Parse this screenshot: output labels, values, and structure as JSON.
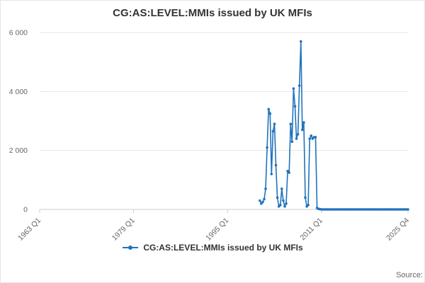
{
  "title": "CG:AS:LEVEL:MMIs issued by UK MFIs",
  "legend": {
    "label": "CG:AS:LEVEL:MMIs issued by UK MFIs"
  },
  "source": "Source:",
  "colors": {
    "series": "#2073bc",
    "gridline": "#e6e6e6",
    "axis": "#cccccc",
    "tick_text": "#666666"
  },
  "chart_data": {
    "type": "line",
    "title": "CG:AS:LEVEL:MMIs issued by UK MFIs",
    "series_name": "CG:AS:LEVEL:MMIs issued by UK MFIs",
    "xlabel": "",
    "ylabel": "",
    "x_axis": {
      "start": "1963 Q1",
      "end": "2025 Q4",
      "frequency": "quarterly",
      "total_quarters": 252,
      "tick_labels": [
        "1963 Q1",
        "1979 Q1",
        "1995 Q1",
        "2011 Q1",
        "2025 Q4"
      ],
      "tick_indices": [
        0,
        64,
        128,
        192,
        251
      ]
    },
    "y_axis": {
      "min": 0,
      "max": 6000,
      "tick_values": [
        0,
        2000,
        4000,
        6000
      ],
      "tick_labels": [
        "0",
        "2 000",
        "4 000",
        "6 000"
      ]
    },
    "legend_position": "bottom",
    "grid": true,
    "data_start_quarter": "2000 Q3",
    "data_start_index": 150,
    "values": [
      300,
      200,
      250,
      350,
      700,
      2100,
      3400,
      3250,
      1200,
      2650,
      2900,
      1500,
      400,
      100,
      150,
      700,
      300,
      100,
      200,
      1300,
      1250,
      2900,
      2300,
      4100,
      3500,
      2400,
      2550,
      4200,
      5700,
      2700,
      2950,
      400,
      100,
      150,
      2400,
      2500,
      2400,
      2450,
      2450,
      50,
      20,
      10,
      0,
      0,
      0,
      0,
      0,
      0,
      0,
      0,
      0,
      0,
      0,
      0,
      0,
      0,
      0,
      0,
      0,
      0,
      0,
      0,
      0,
      0,
      0,
      0,
      0,
      0,
      0,
      0,
      0,
      0,
      0,
      0,
      0,
      0,
      0,
      0,
      0,
      0,
      0,
      0,
      0,
      0,
      0,
      0,
      0,
      0,
      0,
      0,
      0,
      0,
      0,
      0,
      0,
      0,
      0,
      0,
      0,
      0,
      0,
      0
    ]
  }
}
